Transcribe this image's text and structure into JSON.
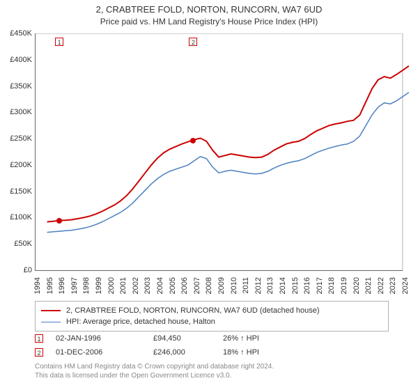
{
  "title_main": "2, CRABTREE FOLD, NORTON, RUNCORN, WA7 6UD",
  "title_sub": "Price paid vs. HM Land Registry's House Price Index (HPI)",
  "colors": {
    "series_property": "#cc0000",
    "series_hpi": "#4a7fc1",
    "marker_border": "#cc0000",
    "grid": "#e0e0e0",
    "axis": "#666666",
    "text": "#333333",
    "footer": "#888888",
    "legend_border": "#b0b0b0",
    "background": "#ffffff"
  },
  "chart": {
    "type": "line",
    "ylim": [
      0,
      450000
    ],
    "ytick_step": 50000,
    "ytick_labels": [
      "£0",
      "£50K",
      "£100K",
      "£150K",
      "£200K",
      "£250K",
      "£300K",
      "£350K",
      "£400K",
      "£450K"
    ],
    "x_years": [
      1994,
      1995,
      1996,
      1997,
      1998,
      1999,
      2000,
      2001,
      2002,
      2003,
      2004,
      2005,
      2006,
      2007,
      2008,
      2009,
      2010,
      2011,
      2012,
      2013,
      2014,
      2015,
      2016,
      2017,
      2018,
      2019,
      2020,
      2021,
      2022,
      2023,
      2024
    ],
    "line_width_property": 2,
    "line_width_hpi": 1.5,
    "series_property": {
      "x": [
        1995,
        1995.5,
        1996,
        1996.5,
        1997,
        1997.5,
        1998,
        1998.5,
        1999,
        1999.5,
        2000,
        2000.5,
        2001,
        2001.5,
        2002,
        2002.5,
        2003,
        2003.5,
        2004,
        2004.5,
        2005,
        2005.5,
        2006,
        2006.5,
        2007,
        2007.5,
        2008,
        2008.5,
        2009,
        2009.5,
        2010,
        2010.5,
        2011,
        2011.5,
        2012,
        2012.5,
        2013,
        2013.5,
        2014,
        2014.5,
        2015,
        2015.5,
        2016,
        2016.5,
        2017,
        2017.5,
        2018,
        2018.5,
        2019,
        2019.5,
        2020,
        2020.5,
        2021,
        2021.5,
        2022,
        2022.5,
        2023,
        2023.5,
        2024,
        2024.5
      ],
      "y": [
        92000,
        93000,
        94450,
        95000,
        96000,
        98000,
        100000,
        103000,
        107000,
        112000,
        118000,
        124000,
        132000,
        142000,
        155000,
        170000,
        185000,
        200000,
        213000,
        223000,
        230000,
        235000,
        240000,
        244000,
        248000,
        251000,
        245000,
        228000,
        215000,
        218000,
        221000,
        219000,
        217000,
        215000,
        214000,
        215000,
        220000,
        228000,
        234000,
        240000,
        243000,
        245000,
        250000,
        258000,
        265000,
        270000,
        275000,
        278000,
        280000,
        283000,
        285000,
        295000,
        320000,
        345000,
        362000,
        368000,
        365000,
        372000,
        380000,
        388000
      ]
    },
    "series_hpi": {
      "x": [
        1995,
        1995.5,
        1996,
        1996.5,
        1997,
        1997.5,
        1998,
        1998.5,
        1999,
        1999.5,
        2000,
        2000.5,
        2001,
        2001.5,
        2002,
        2002.5,
        2003,
        2003.5,
        2004,
        2004.5,
        2005,
        2005.5,
        2006,
        2006.5,
        2007,
        2007.5,
        2008,
        2008.5,
        2009,
        2009.5,
        2010,
        2010.5,
        2011,
        2011.5,
        2012,
        2012.5,
        2013,
        2013.5,
        2014,
        2014.5,
        2015,
        2015.5,
        2016,
        2016.5,
        2017,
        2017.5,
        2018,
        2018.5,
        2019,
        2019.5,
        2020,
        2020.5,
        2021,
        2021.5,
        2022,
        2022.5,
        2023,
        2023.5,
        2024,
        2024.5
      ],
      "y": [
        72000,
        73000,
        74000,
        75000,
        76000,
        78000,
        80000,
        83000,
        87000,
        92000,
        98000,
        104000,
        110000,
        118000,
        128000,
        140000,
        152000,
        164000,
        174000,
        182000,
        188000,
        192000,
        196000,
        200000,
        208000,
        216000,
        212000,
        196000,
        185000,
        188000,
        190000,
        188000,
        186000,
        184000,
        183000,
        184000,
        188000,
        194000,
        199000,
        203000,
        206000,
        208000,
        212000,
        218000,
        224000,
        228000,
        232000,
        235000,
        238000,
        240000,
        245000,
        255000,
        275000,
        295000,
        310000,
        318000,
        316000,
        322000,
        330000,
        338000
      ]
    },
    "markers": [
      {
        "n": "1",
        "year": 1996.0,
        "value": 94450
      },
      {
        "n": "2",
        "year": 2006.92,
        "value": 246000
      }
    ]
  },
  "legend": {
    "items": [
      {
        "color": "#cc0000",
        "width": 2,
        "label": "2, CRABTREE FOLD, NORTON, RUNCORN, WA7 6UD (detached house)"
      },
      {
        "color": "#4a7fc1",
        "width": 1.5,
        "label": "HPI: Average price, detached house, Halton"
      }
    ]
  },
  "data_points": [
    {
      "n": "1",
      "date": "02-JAN-1996",
      "price": "£94,450",
      "pct": "26% ↑ HPI"
    },
    {
      "n": "2",
      "date": "01-DEC-2006",
      "price": "£246,000",
      "pct": "18% ↑ HPI"
    }
  ],
  "footer_line1": "Contains HM Land Registry data © Crown copyright and database right 2024.",
  "footer_line2": "This data is licensed under the Open Government Licence v3.0.",
  "fontsize": {
    "title": 13,
    "subtitle": 12,
    "tick": 11,
    "legend": 11,
    "footer": 10
  }
}
